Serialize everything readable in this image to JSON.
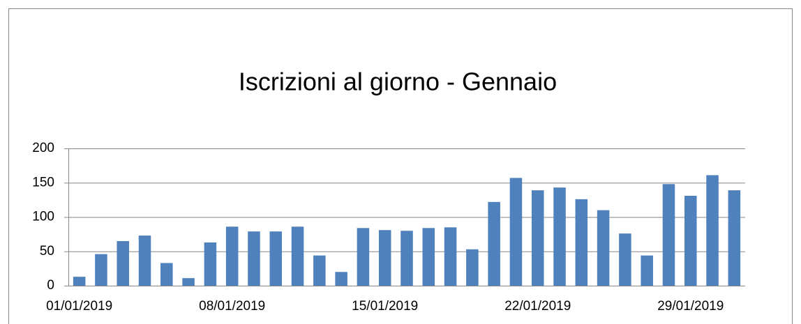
{
  "chart_data": {
    "type": "bar",
    "title": "Iscrizioni al giorno - Gennaio",
    "categories": [
      "01/01/2019",
      null,
      null,
      null,
      null,
      null,
      null,
      "08/01/2019",
      null,
      null,
      null,
      null,
      null,
      null,
      "15/01/2019",
      null,
      null,
      null,
      null,
      null,
      null,
      "22/01/2019",
      null,
      null,
      null,
      null,
      null,
      null,
      "29/01/2019",
      null,
      null
    ],
    "values": [
      13,
      46,
      65,
      73,
      33,
      11,
      63,
      86,
      79,
      79,
      86,
      44,
      20,
      84,
      81,
      80,
      84,
      85,
      53,
      122,
      157,
      139,
      143,
      126,
      110,
      76,
      44,
      148,
      131,
      161,
      139
    ],
    "color": "#4f81bd",
    "ylim": [
      0,
      200
    ],
    "yticks": [
      0,
      50,
      100,
      150,
      200
    ],
    "grid": true
  }
}
